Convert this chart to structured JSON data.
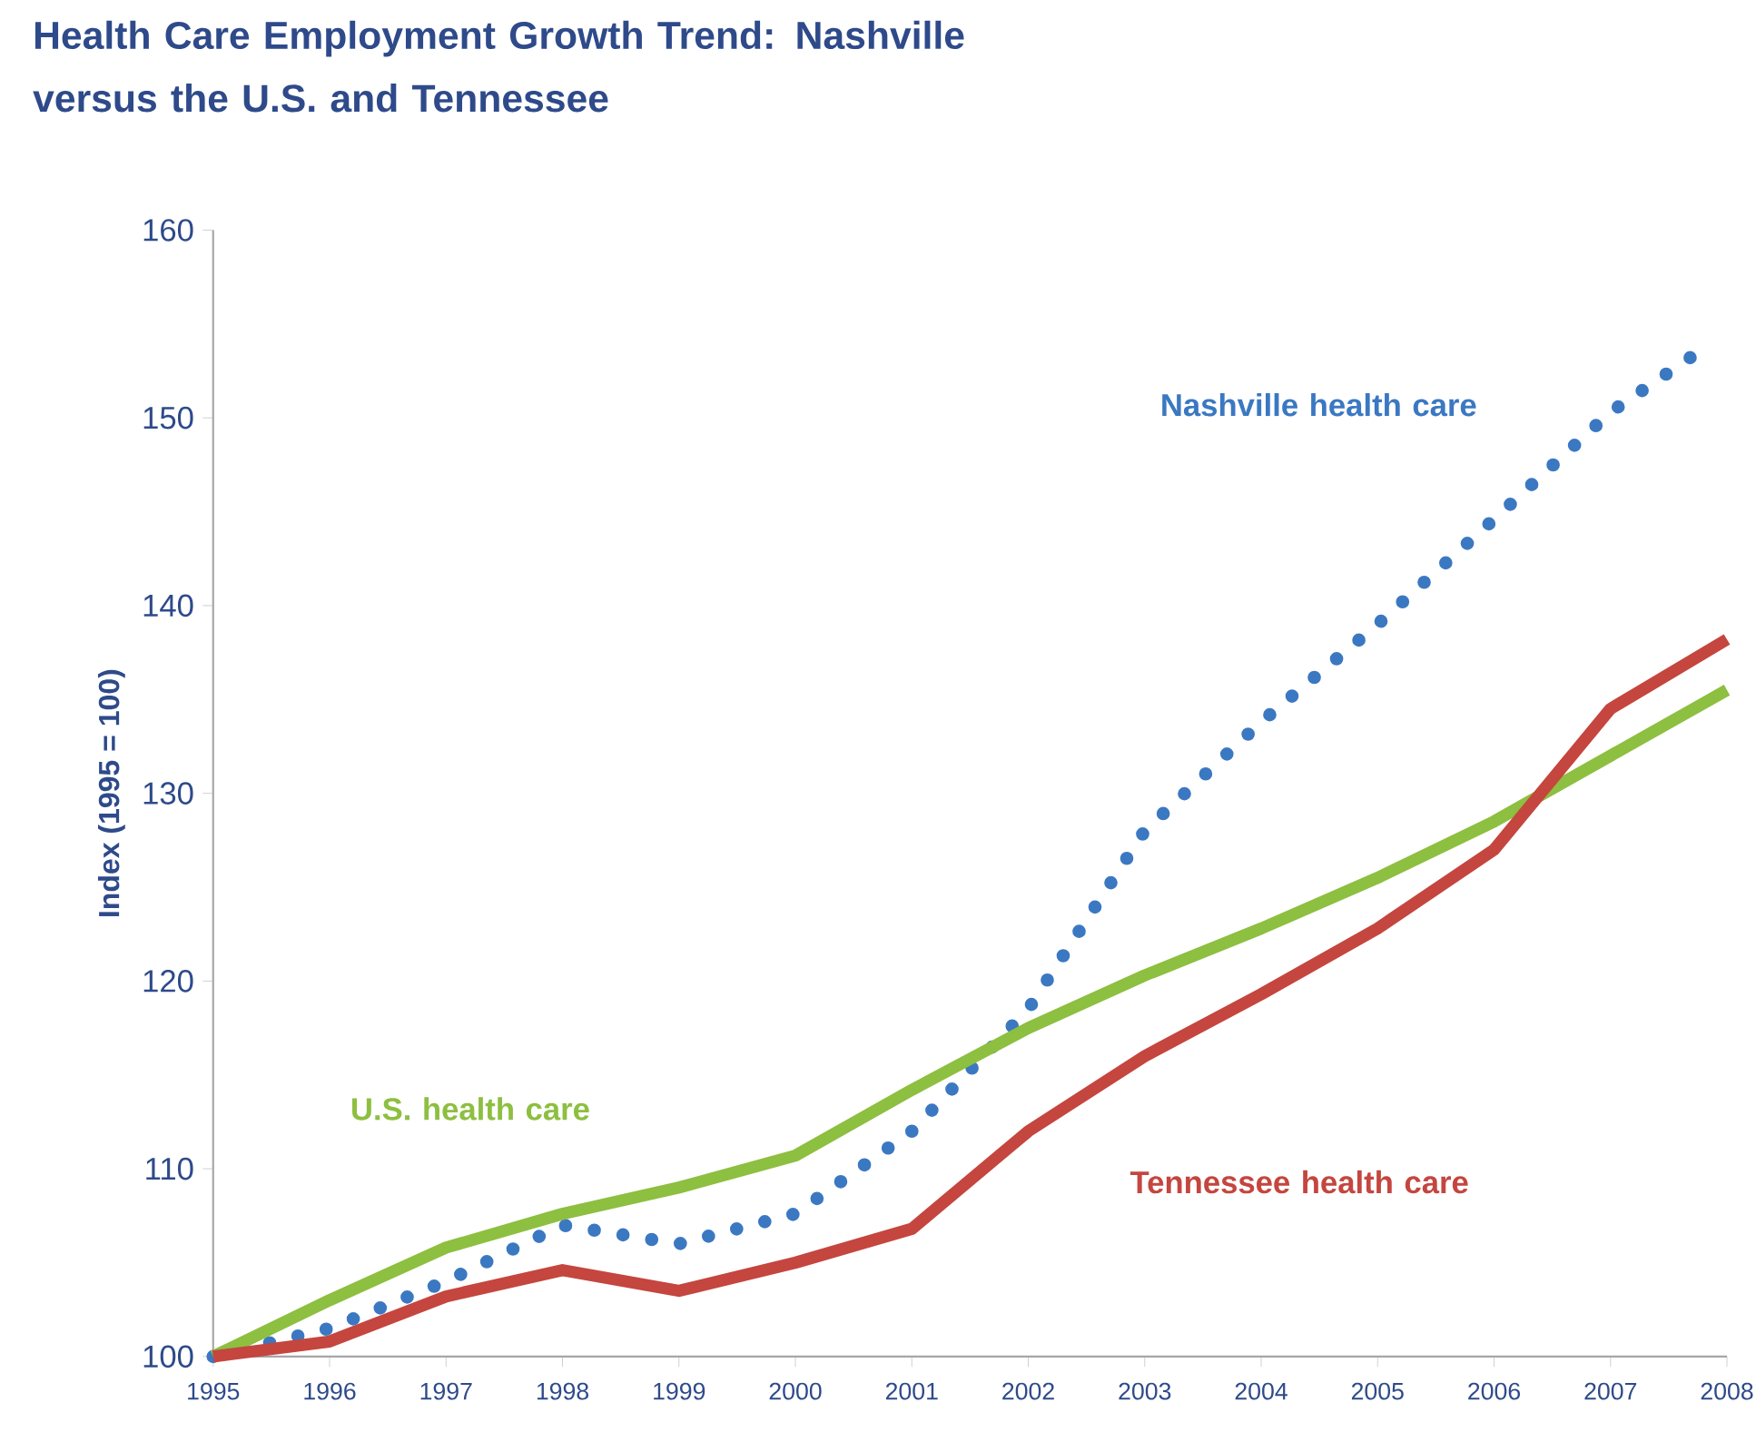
{
  "chart_data": {
    "type": "line",
    "title": "Health Care Employment Growth Trend: Nashville versus the U.S. and Tennessee",
    "ylabel": "Index (1995 = 100)",
    "xlim": [
      1995,
      2008
    ],
    "xticks": [
      1995,
      1996,
      1997,
      1998,
      1999,
      2000,
      2001,
      2002,
      2003,
      2004,
      2005,
      2006,
      2007,
      2008
    ],
    "ylim": [
      100,
      160
    ],
    "yticks": [
      100,
      110,
      120,
      130,
      140,
      150,
      160
    ],
    "grid": false,
    "series": [
      {
        "name": "Nashville health care",
        "color": "#3b78c2",
        "line_style": "dotted",
        "x": [
          1995,
          1996,
          1997,
          1998,
          1999,
          2000,
          2001,
          2002,
          2003,
          2004,
          2005,
          2006,
          2007,
          2007.8
        ],
        "values": [
          100,
          101.5,
          104,
          107,
          106,
          107.6,
          112,
          118.5,
          128,
          133.8,
          139,
          144.6,
          150.3,
          153.7
        ]
      },
      {
        "name": "U.S. health care",
        "color": "#8dbf40",
        "line_style": "solid",
        "x": [
          1995,
          1996,
          1997,
          1998,
          1999,
          2000,
          2001,
          2002,
          2003,
          2004,
          2005,
          2006,
          2007,
          2008
        ],
        "values": [
          100,
          103,
          105.8,
          107.6,
          109,
          110.7,
          114.2,
          117.5,
          120.3,
          122.8,
          125.5,
          128.5,
          132,
          135.5
        ]
      },
      {
        "name": "Tennessee health care",
        "color": "#c4463f",
        "line_style": "solid",
        "x": [
          1995,
          1996,
          1997,
          1998,
          1999,
          2000,
          2001,
          2002,
          2003,
          2004,
          2005,
          2006,
          2007,
          2008
        ],
        "values": [
          100,
          100.8,
          103.2,
          104.6,
          103.5,
          105,
          106.8,
          112,
          116,
          119.3,
          122.8,
          127,
          134.5,
          138.2
        ]
      }
    ]
  }
}
